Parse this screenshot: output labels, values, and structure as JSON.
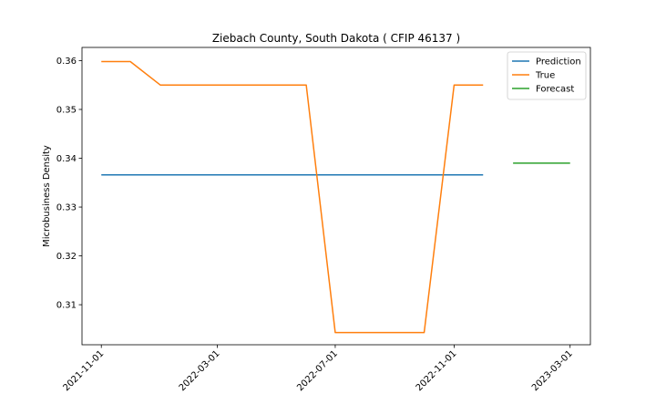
{
  "chart_data": {
    "type": "line",
    "title": "Ziebach County, South Dakota ( CFIP 46137 )",
    "xlabel": "",
    "ylabel": "Microbusiness Density",
    "x_tick_labels": [
      "2021-11-01",
      "2022-03-01",
      "2022-07-01",
      "2022-11-01",
      "2023-03-01"
    ],
    "x_ticks": [
      "2021-11-01",
      "2022-03-01",
      "2022-07-01",
      "2022-11-01",
      "2023-03-01"
    ],
    "xlim": [
      "2021-10-12",
      "2023-03-22"
    ],
    "y_ticks": [
      0.31,
      0.32,
      0.33,
      0.34,
      0.35,
      0.36
    ],
    "y_tick_labels": [
      "0.31",
      "0.32",
      "0.33",
      "0.34",
      "0.35",
      "0.36"
    ],
    "ylim": [
      0.3018,
      0.3627
    ],
    "grid": false,
    "legend_position": "top-right",
    "series": [
      {
        "name": "Prediction",
        "color": "#1f77b4",
        "x": [
          "2021-11-01",
          "2022-12-01"
        ],
        "y": [
          0.3366,
          0.3366
        ]
      },
      {
        "name": "True",
        "color": "#ff7f0e",
        "x": [
          "2021-11-01",
          "2021-12-01",
          "2022-01-01",
          "2022-02-01",
          "2022-03-01",
          "2022-04-01",
          "2022-05-01",
          "2022-06-01",
          "2022-07-01",
          "2022-08-01",
          "2022-09-01",
          "2022-10-01",
          "2022-11-01",
          "2022-12-01"
        ],
        "y": [
          0.3598,
          0.3598,
          0.355,
          0.355,
          0.355,
          0.355,
          0.355,
          0.355,
          0.3043,
          0.3043,
          0.3043,
          0.3043,
          0.355,
          0.355
        ]
      },
      {
        "name": "Forecast",
        "color": "#2ca02c",
        "x": [
          "2023-01-01",
          "2023-03-01"
        ],
        "y": [
          0.339,
          0.339
        ]
      }
    ]
  }
}
